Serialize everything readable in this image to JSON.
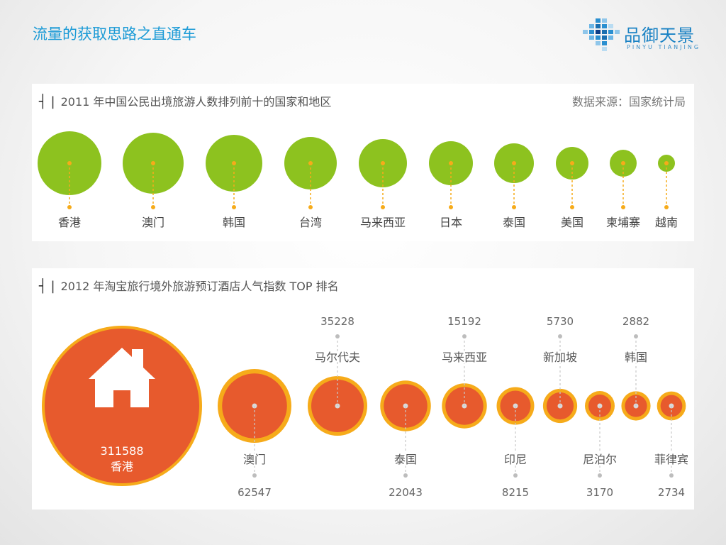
{
  "slide_title": "流量的获取思路之直通车",
  "logo": {
    "name": "品御天景",
    "subtitle": "PINYU TIANJING"
  },
  "colors": {
    "green": "#8dc21f",
    "orange": "#e75a2d",
    "ring": "#f6ab1a",
    "title_blue": "#1a9ad6"
  },
  "chart_data": [
    {
      "type": "bubble",
      "title": "2011 年中国公民出境旅游人数排列前十的国家和地区",
      "source": "数据来源：国家统计局",
      "categories": [
        "香港",
        "澳门",
        "韩国",
        "台湾",
        "马来西亚",
        "日本",
        "泰国",
        "美国",
        "柬埔寨",
        "越南"
      ],
      "rank": [
        1,
        2,
        3,
        4,
        5,
        6,
        7,
        8,
        9,
        10
      ]
    },
    {
      "type": "bubble",
      "title": "2012 年淘宝旅行境外旅游预订酒店人气指数 TOP 排名",
      "categories": [
        "香港",
        "澳门",
        "马尔代夫",
        "泰国",
        "马来西亚",
        "印尼",
        "新加坡",
        "尼泊尔",
        "韩国",
        "菲律宾"
      ],
      "values": [
        311588,
        62547,
        35228,
        22043,
        15192,
        8215,
        5730,
        3170,
        2882,
        2734
      ],
      "label_position": [
        "center",
        "below",
        "above",
        "below",
        "above",
        "below",
        "above",
        "below",
        "above",
        "below"
      ]
    }
  ]
}
